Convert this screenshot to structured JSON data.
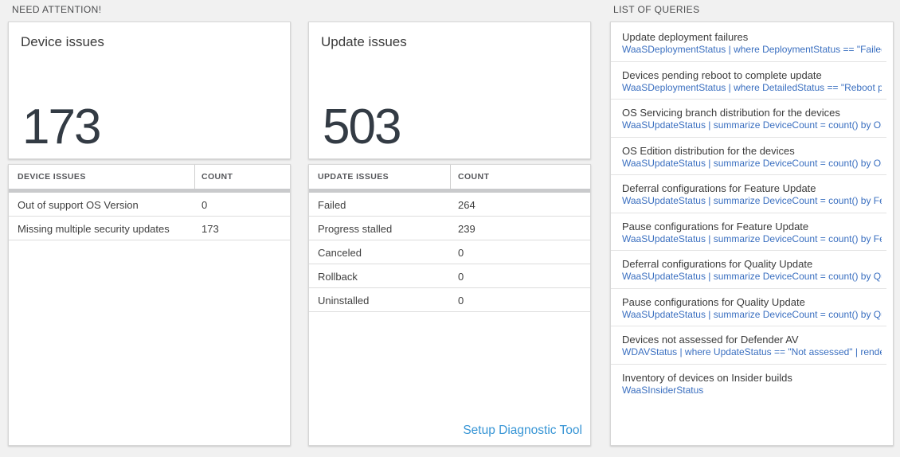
{
  "sections": {
    "need_attention_label": "NEED ATTENTION!",
    "list_of_queries_label": "LIST OF QUERIES"
  },
  "device_issues": {
    "tile_title": "Device issues",
    "tile_count": "173",
    "table": {
      "col_issue": "DEVICE ISSUES",
      "col_count": "COUNT",
      "rows": [
        {
          "label": "Out of support OS Version",
          "count": "0"
        },
        {
          "label": "Missing multiple security updates",
          "count": "173"
        }
      ]
    }
  },
  "update_issues": {
    "tile_title": "Update issues",
    "tile_count": "503",
    "table": {
      "col_issue": "UPDATE ISSUES",
      "col_count": "COUNT",
      "rows": [
        {
          "label": "Failed",
          "count": "264"
        },
        {
          "label": "Progress stalled",
          "count": "239"
        },
        {
          "label": "Canceled",
          "count": "0"
        },
        {
          "label": "Rollback",
          "count": "0"
        },
        {
          "label": "Uninstalled",
          "count": "0"
        }
      ]
    },
    "footer_link": "Setup Diagnostic Tool"
  },
  "queries": {
    "items": [
      {
        "title": "Update deployment failures",
        "query": "WaaSDeploymentStatus | where DeploymentStatus == \"Failed\" |..."
      },
      {
        "title": "Devices pending reboot to complete update",
        "query": "WaaSDeploymentStatus | where DetailedStatus == \"Reboot pend..."
      },
      {
        "title": "OS Servicing branch distribution for the devices",
        "query": "WaaSUpdateStatus | summarize DeviceCount = count() by OSSer..."
      },
      {
        "title": "OS Edition distribution for the devices",
        "query": "WaaSUpdateStatus | summarize DeviceCount = count() by OSEdit..."
      },
      {
        "title": "Deferral configurations for Feature Update",
        "query": "WaaSUpdateStatus | summarize DeviceCount = count() by Featur..."
      },
      {
        "title": "Pause configurations for Feature Update",
        "query": "WaaSUpdateStatus | summarize DeviceCount = count() by Featur..."
      },
      {
        "title": "Deferral configurations for Quality Update",
        "query": "WaaSUpdateStatus | summarize DeviceCount = count() by Qualit..."
      },
      {
        "title": "Pause configurations for Quality Update",
        "query": "WaaSUpdateStatus | summarize DeviceCount = count() by Qualit..."
      },
      {
        "title": "Devices not assessed for Defender AV",
        "query": "WDAVStatus | where UpdateStatus == \"Not assessed\" | render ta..."
      },
      {
        "title": "Inventory of devices on Insider builds",
        "query": "WaaSInsiderStatus"
      }
    ]
  },
  "colors": {
    "page_background": "#f1f1f1",
    "query_code_blue": "#3a6fc0",
    "action_link_blue": "#3795d5",
    "big_number": "#333b44"
  }
}
